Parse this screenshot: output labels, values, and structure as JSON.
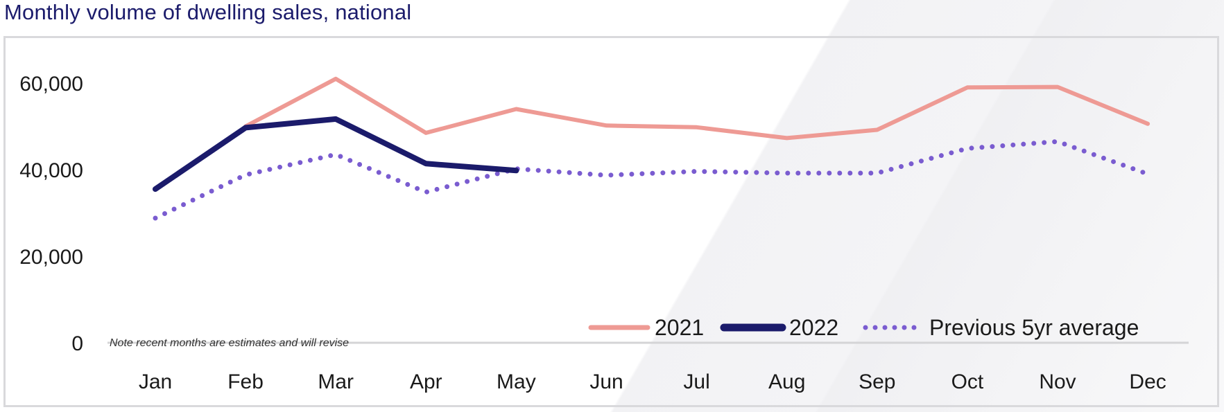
{
  "chart_data": {
    "type": "line",
    "title": "Monthly volume of dwelling sales, national",
    "categories": [
      "Jan",
      "Feb",
      "Mar",
      "Apr",
      "May",
      "Jun",
      "Jul",
      "Aug",
      "Sep",
      "Oct",
      "Nov",
      "Dec"
    ],
    "ylim": [
      0,
      70000
    ],
    "yticks": [
      0,
      20000,
      40000,
      60000
    ],
    "ytick_labels": [
      "0",
      "20,000",
      "40,000",
      "60,000"
    ],
    "grid": false,
    "legend_position": "bottom-right",
    "note": "Note recent months are estimates and will revise",
    "series": [
      {
        "name": "2021",
        "color": "#ee9a94",
        "style": "solid",
        "values": [
          null,
          50000,
          61000,
          48500,
          54000,
          50200,
          49800,
          47300,
          49200,
          59000,
          59100,
          50600
        ]
      },
      {
        "name": "2022",
        "color": "#1b1b6b",
        "style": "solid",
        "values": [
          35500,
          49700,
          51700,
          41400,
          39800,
          null,
          null,
          null,
          null,
          null,
          null,
          null
        ]
      },
      {
        "name": "Previous 5yr average",
        "color": "#7a5cd0",
        "style": "dotted",
        "values": [
          28800,
          38800,
          43500,
          34800,
          40200,
          38700,
          39600,
          39200,
          39200,
          44900,
          46500,
          39000
        ]
      }
    ]
  }
}
